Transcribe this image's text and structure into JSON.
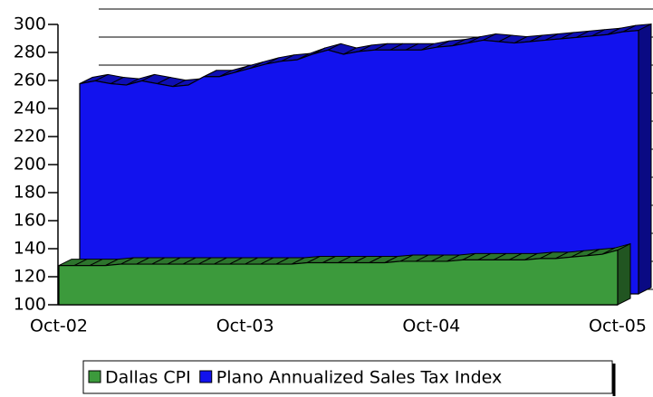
{
  "chart_data": {
    "type": "area3d",
    "categories": [
      "Oct-02",
      null,
      null,
      null,
      null,
      null,
      null,
      null,
      null,
      null,
      null,
      null,
      "Oct-03",
      null,
      null,
      null,
      null,
      null,
      null,
      null,
      null,
      null,
      null,
      null,
      "Oct-04",
      null,
      null,
      null,
      null,
      null,
      null,
      null,
      null,
      null,
      null,
      null,
      "Oct-05"
    ],
    "series": [
      {
        "name": "Dallas CPI",
        "color": "#3c9a3c",
        "values": [
          128,
          128,
          128,
          128,
          129,
          129,
          129,
          129,
          129,
          129,
          129,
          129,
          129,
          129,
          129,
          129,
          130,
          130,
          130,
          130,
          130,
          130,
          131,
          131,
          131,
          131,
          132,
          132,
          132,
          132,
          132,
          133,
          133,
          134,
          135,
          136,
          139
        ]
      },
      {
        "name": "Plano Annualized Sales Tax Index",
        "color": "#1212ee",
        "values": [
          250,
          252,
          250,
          249,
          252,
          250,
          248,
          249,
          255,
          255,
          258,
          261,
          264,
          266,
          267,
          271,
          274,
          271,
          273,
          274,
          274,
          274,
          274,
          276,
          277,
          279,
          281,
          280,
          279,
          280,
          281,
          282,
          283,
          284,
          285,
          287,
          288
        ]
      }
    ],
    "ylim": [
      100,
      300
    ],
    "yticks": [
      100,
      120,
      140,
      160,
      180,
      200,
      220,
      240,
      260,
      280,
      300
    ],
    "grid": true
  }
}
